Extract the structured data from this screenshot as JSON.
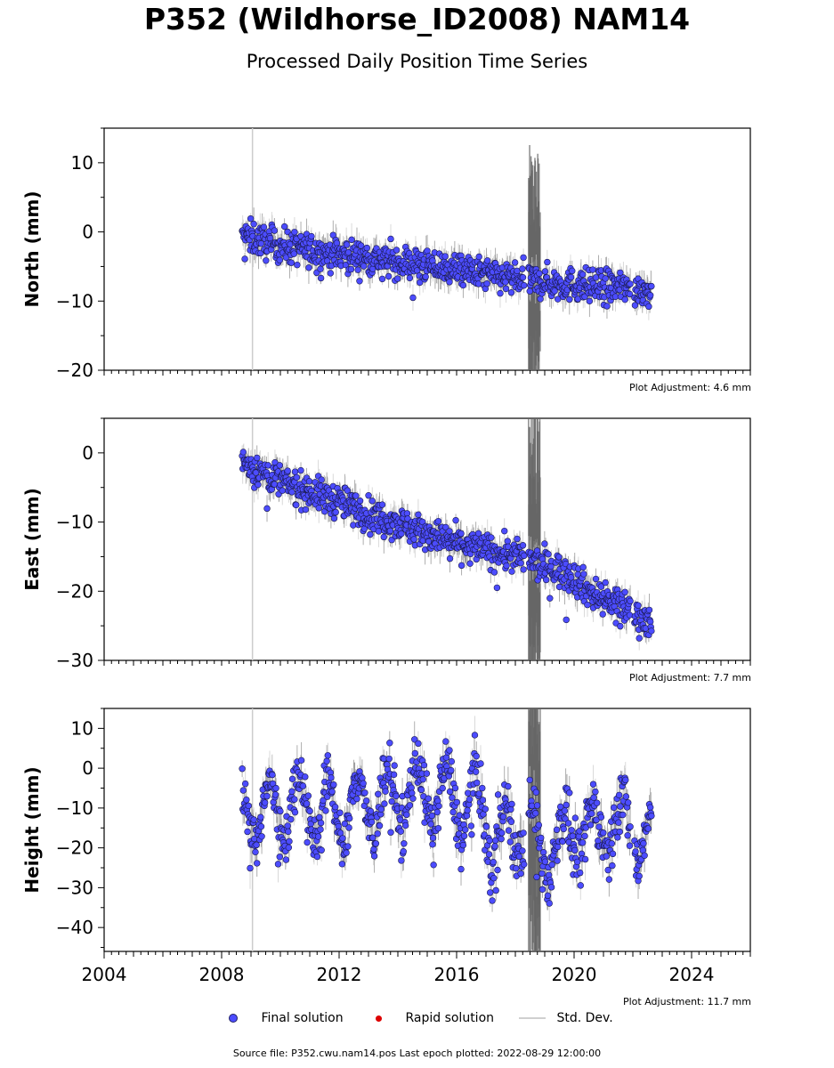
{
  "title": "P352 (Wildhorse_ID2008) NAM14",
  "subtitle": "Processed Daily Position Time Series",
  "colors": {
    "final": "#4c4cff",
    "final_edge": "#1a1a4d",
    "rapid": "#dd0000",
    "std": "#c8c8c8",
    "gap_band": "#666666"
  },
  "legend": {
    "final": "Final solution",
    "rapid": "Rapid solution",
    "std": "Std. Dev."
  },
  "source": "Source file: P352.cwu.nam14.pos  Last epoch plotted: 2022-08-29 12:00:00",
  "chart_data": [
    {
      "type": "scatter",
      "ylabel": "North (mm)",
      "xlim": [
        2004,
        2026
      ],
      "ylim": [
        -20,
        15
      ],
      "yticks": [
        10,
        0,
        -10,
        -20
      ],
      "adjustment": "Plot Adjustment: 4.6 mm",
      "series": [
        {
          "x": [
            2008.7,
            2009.0,
            2009.5,
            2010.0,
            2010.5,
            2011.0,
            2011.5,
            2012.0,
            2012.5,
            2013.0,
            2013.5,
            2014.0,
            2014.5,
            2015.0,
            2015.5,
            2016.0,
            2016.5,
            2017.0,
            2017.5,
            2018.0,
            2018.5,
            2019.0,
            2019.5,
            2020.0,
            2020.5,
            2021.0,
            2021.5,
            2021.9,
            2022.3,
            2022.65
          ],
          "y": [
            -0.5,
            -0.8,
            -1.5,
            -2.0,
            -2.3,
            -2.7,
            -3.0,
            -3.2,
            -3.5,
            -3.8,
            -4.0,
            -4.3,
            -4.5,
            -4.9,
            -5.2,
            -5.5,
            -5.8,
            -6.2,
            -6.5,
            -6.8,
            -7.0,
            -7.3,
            -7.5,
            -7.6,
            -7.8,
            -8.0,
            -8.0,
            -8.2,
            -8.3,
            -8.5
          ]
        }
      ]
    },
    {
      "type": "scatter",
      "ylabel": "East (mm)",
      "xlim": [
        2004,
        2026
      ],
      "ylim": [
        -30,
        5
      ],
      "yticks": [
        0,
        -10,
        -20,
        -30
      ],
      "adjustment": "Plot Adjustment: 7.7 mm",
      "series": [
        {
          "x": [
            2008.7,
            2009.0,
            2009.5,
            2010.0,
            2010.5,
            2011.0,
            2011.5,
            2012.0,
            2012.5,
            2013.0,
            2013.5,
            2014.0,
            2014.5,
            2015.0,
            2015.5,
            2016.0,
            2016.5,
            2017.0,
            2017.5,
            2018.0,
            2018.5,
            2019.0,
            2019.5,
            2020.0,
            2020.5,
            2021.0,
            2021.5,
            2021.9,
            2022.3,
            2022.65
          ],
          "y": [
            -1.0,
            -2.0,
            -3.0,
            -4.0,
            -5.0,
            -5.5,
            -6.5,
            -7.0,
            -8.0,
            -8.8,
            -9.5,
            -10.0,
            -11.0,
            -11.5,
            -12.5,
            -13.0,
            -13.5,
            -14.0,
            -14.5,
            -15.0,
            -15.5,
            -16.5,
            -17.0,
            -18.0,
            -20.0,
            -21.0,
            -22.0,
            -22.5,
            -24.0,
            -24.0
          ]
        }
      ]
    },
    {
      "type": "scatter",
      "ylabel": "Height (mm)",
      "xlim": [
        2004,
        2026
      ],
      "ylim": [
        -46,
        15
      ],
      "yticks": [
        10,
        0,
        -10,
        -20,
        -30,
        -40
      ],
      "xticks": [
        2004,
        2008,
        2012,
        2016,
        2020,
        2024
      ],
      "adjustment": "Plot Adjustment: 11.7 mm",
      "series": [
        {
          "x": [
            2008.7,
            2008.95,
            2009.2,
            2009.45,
            2009.7,
            2009.95,
            2010.2,
            2010.45,
            2010.7,
            2010.95,
            2011.2,
            2011.45,
            2011.7,
            2011.95,
            2012.2,
            2012.45,
            2012.7,
            2012.95,
            2013.2,
            2013.45,
            2013.7,
            2013.95,
            2014.2,
            2014.45,
            2014.7,
            2014.95,
            2015.2,
            2015.45,
            2015.7,
            2015.95,
            2016.2,
            2016.45,
            2016.7,
            2016.95,
            2017.2,
            2017.45,
            2017.7,
            2017.95,
            2018.2,
            2018.45,
            2018.7,
            2018.95,
            2019.2,
            2019.45,
            2019.7,
            2019.95,
            2020.2,
            2020.45,
            2020.7,
            2020.95,
            2021.2,
            2021.45,
            2021.7,
            2021.95,
            2022.2,
            2022.45,
            2022.65
          ],
          "y": [
            -5,
            -15,
            -20,
            -8,
            -2,
            -15,
            -18,
            -5,
            0,
            -12,
            -20,
            -8,
            -2,
            -14,
            -22,
            -6,
            0,
            -12,
            -20,
            -4,
            2,
            -10,
            -18,
            -2,
            3,
            -8,
            -18,
            -3,
            2,
            -10,
            -20,
            -5,
            0,
            -14,
            -28,
            -12,
            -8,
            -20,
            -22,
            -10,
            -12,
            -25,
            -28,
            -15,
            -10,
            -20,
            -25,
            -12,
            -8,
            -18,
            -22,
            -10,
            -6,
            -18,
            -25,
            -15,
            -10
          ]
        }
      ]
    }
  ]
}
